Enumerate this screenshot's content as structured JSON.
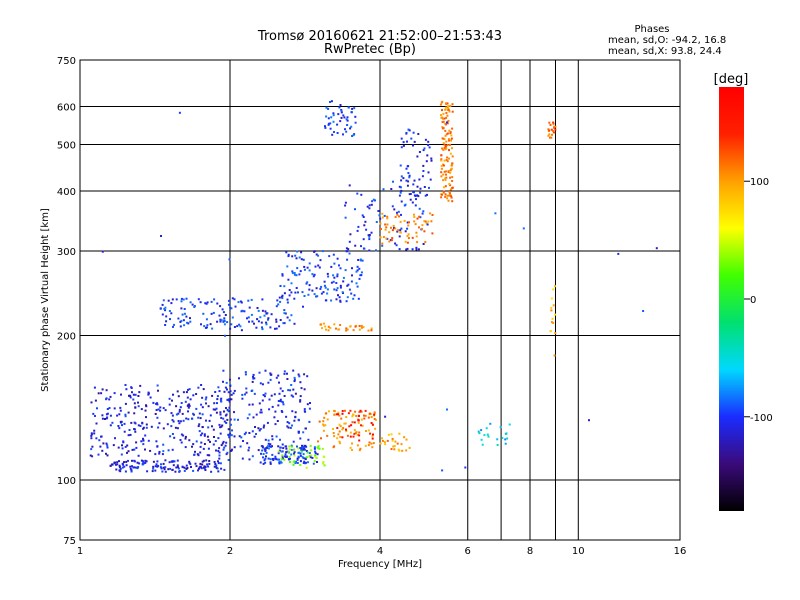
{
  "chart_data": {
    "type": "scatter",
    "title": "Tromsø 20160621 21:52:00–21:53:43",
    "subtitle": "RwPretec (Bp)",
    "xlabel": "Frequency [MHz]",
    "ylabel": "Stationary phase Virtual Height [km]",
    "x_scale": "log",
    "y_scale": "log",
    "xlim": [
      1,
      16
    ],
    "ylim": [
      75,
      750
    ],
    "x_ticks": [
      1,
      2,
      4,
      6,
      8,
      10,
      16
    ],
    "y_ticks": [
      75,
      100,
      200,
      300,
      400,
      500,
      600,
      750
    ],
    "x_grid": [
      1,
      2,
      4,
      6,
      7,
      8,
      9,
      10
    ],
    "y_grid": [
      100,
      200,
      300,
      400,
      500,
      600
    ],
    "grid": true,
    "phase_header": "Phases",
    "phase_stats": [
      {
        "label": "mean, sd,O:",
        "mean": "-94.2",
        "sd": "16.8"
      },
      {
        "label": "mean, sd,X:",
        "mean": "93.8",
        "sd": "24.4"
      }
    ],
    "colorbar": {
      "label": "[deg]",
      "range": [
        -180,
        180
      ],
      "ticks": [
        100,
        0,
        -100
      ],
      "colors": [
        "#000000",
        "#3a0a7a",
        "#1a2cff",
        "#00d8ff",
        "#00e070",
        "#40ff00",
        "#ffff00",
        "#ffa000",
        "#ff2000",
        "#ff0000"
      ]
    },
    "clusters": [
      {
        "phase": -110,
        "n": 320,
        "x": [
          1.05,
          2.0
        ],
        "y": [
          112,
          158
        ]
      },
      {
        "phase": -110,
        "n": 140,
        "x": [
          1.15,
          1.95
        ],
        "y": [
          104,
          110
        ]
      },
      {
        "phase": -105,
        "n": 220,
        "x": [
          1.9,
          2.9
        ],
        "y": [
          110,
          170
        ]
      },
      {
        "phase": -100,
        "n": 100,
        "x": [
          2.3,
          3.0
        ],
        "y": [
          108,
          118
        ]
      },
      {
        "phase": 30,
        "n": 40,
        "x": [
          2.5,
          3.1
        ],
        "y": [
          106,
          118
        ]
      },
      {
        "phase": 105,
        "n": 90,
        "x": [
          3.0,
          3.95
        ],
        "y": [
          115,
          140
        ]
      },
      {
        "phase": 160,
        "n": 30,
        "x": [
          3.2,
          3.9
        ],
        "y": [
          120,
          140
        ]
      },
      {
        "phase": 100,
        "n": 25,
        "x": [
          4.0,
          4.6
        ],
        "y": [
          115,
          125
        ]
      },
      {
        "phase": -100,
        "n": 150,
        "x": [
          1.45,
          2.7
        ],
        "y": [
          205,
          240
        ]
      },
      {
        "phase": -100,
        "n": 140,
        "x": [
          2.5,
          3.7
        ],
        "y": [
          235,
          300
        ]
      },
      {
        "phase": 110,
        "n": 30,
        "x": [
          3.0,
          3.9
        ],
        "y": [
          204,
          212
        ]
      },
      {
        "phase": -105,
        "n": 90,
        "x": [
          3.4,
          4.9
        ],
        "y": [
          300,
          420
        ]
      },
      {
        "phase": 110,
        "n": 60,
        "x": [
          4.0,
          5.1
        ],
        "y": [
          310,
          360
        ]
      },
      {
        "phase": -105,
        "n": 60,
        "x": [
          4.4,
          5.1
        ],
        "y": [
          380,
          540
        ]
      },
      {
        "phase": 110,
        "n": 130,
        "x": [
          5.3,
          5.6
        ],
        "y": [
          380,
          620
        ]
      },
      {
        "phase": -100,
        "n": 50,
        "x": [
          3.1,
          3.6
        ],
        "y": [
          520,
          620
        ]
      },
      {
        "phase": -60,
        "n": 20,
        "x": [
          6.3,
          7.3
        ],
        "y": [
          118,
          132
        ]
      },
      {
        "phase": 120,
        "n": 20,
        "x": [
          8.7,
          9.0
        ],
        "y": [
          515,
          560
        ]
      },
      {
        "phase": 90,
        "n": 14,
        "x": [
          8.8,
          9.0
        ],
        "y": [
          180,
          260
        ]
      },
      {
        "phase": -100,
        "n": 20,
        "x": [
          1.0,
          16.0
        ],
        "y": [
          90,
          680
        ]
      }
    ]
  }
}
